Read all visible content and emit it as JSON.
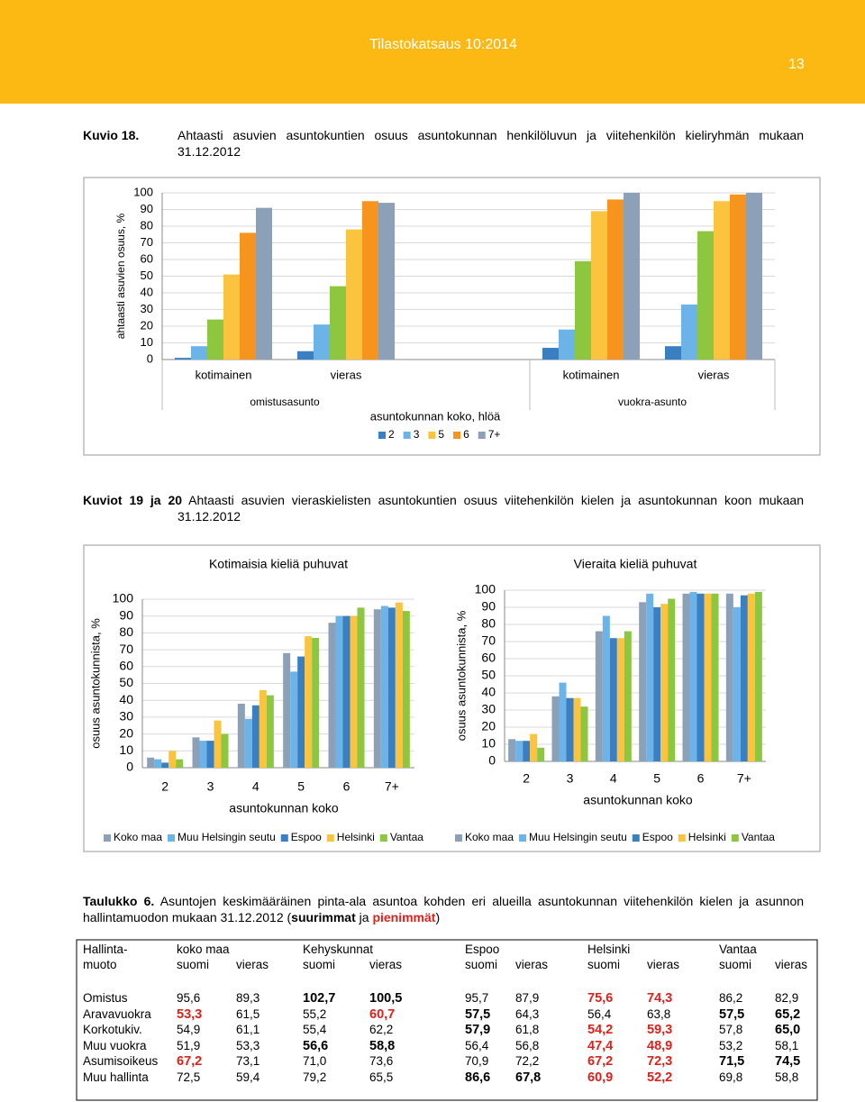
{
  "header": {
    "publication": "Tilastokatsaus 10:2014",
    "page_number": "13"
  },
  "figure_18": {
    "label": "Kuvio 18.",
    "caption": "Ahtaasti asuvien asuntokuntien osuus asuntokunnan henkilöluvun ja viitehenkilön kieliryhmän mukaan 31.12.2012",
    "chart_data": {
      "type": "bar",
      "y_label": "ahtaasti asuvien osuus, %",
      "x_label": "asuntokunnan koko, hlöä",
      "categories": [
        "kotimainen",
        "vieras",
        null,
        "kotimainen",
        "vieras"
      ],
      "group_labels": [
        "omistusasunto",
        "vuokra-asunto"
      ],
      "ylim": [
        0,
        100
      ],
      "yticks": [
        0,
        10,
        20,
        30,
        40,
        50,
        60,
        70,
        80,
        90,
        100
      ],
      "grid": true,
      "legend": "bottom",
      "series": [
        {
          "name": "2",
          "color": "#3a7fc1",
          "values": [
            1,
            5,
            null,
            7,
            8
          ]
        },
        {
          "name": "3",
          "color": "#6cb4e8",
          "values": [
            8,
            21,
            null,
            18,
            33
          ]
        },
        {
          "name": null,
          "color": "#8dc63f",
          "values": [
            24,
            44,
            null,
            59,
            77
          ]
        },
        {
          "name": "5",
          "color": "#fcc43e",
          "values": [
            51,
            78,
            null,
            89,
            95
          ]
        },
        {
          "name": "6",
          "color": "#f7941d",
          "values": [
            76,
            95,
            null,
            96,
            99
          ]
        },
        {
          "name": "7+",
          "color": "#8ca0b8",
          "values": [
            91,
            94,
            null,
            100,
            100
          ]
        }
      ]
    }
  },
  "figures_19_20": {
    "label": "Kuviot 19 ja 20",
    "caption": "Ahtaasti asuvien vieraskielisten asuntokuntien osuus viitehenkilön kielen ja asuntokunnan koon mukaan 31.12.2012",
    "chart_data": [
      {
        "type": "bar",
        "title": "Kotimaisia kieliä puhuvat",
        "y_label": "osuus asuntokunnista, %",
        "x_label": "asuntokunnan koko",
        "categories": [
          "2",
          "3",
          "4",
          "5",
          "6",
          "7+"
        ],
        "ylim": [
          0,
          100
        ],
        "yticks": [
          0,
          10,
          20,
          30,
          40,
          50,
          60,
          70,
          80,
          90,
          100
        ],
        "grid": true,
        "legend": "bottom",
        "series": [
          {
            "name": "Koko maa",
            "color": "#8ca0b8",
            "values": [
              6,
              18,
              38,
              68,
              86,
              94
            ]
          },
          {
            "name": "Muu Helsingin seutu",
            "color": "#6cb4e8",
            "values": [
              5,
              16,
              29,
              57,
              90,
              96
            ]
          },
          {
            "name": "Espoo",
            "color": "#3a7fc1",
            "values": [
              3,
              16,
              37,
              66,
              90,
              95
            ]
          },
          {
            "name": "Helsinki",
            "color": "#fcc43e",
            "values": [
              10,
              28,
              46,
              78,
              90,
              98
            ]
          },
          {
            "name": "Vantaa",
            "color": "#8dc63f",
            "values": [
              5,
              20,
              43,
              77,
              95,
              93
            ]
          }
        ]
      },
      {
        "type": "bar",
        "title": "Vieraita kieliä puhuvat",
        "y_label": "osuus asuntokunnista, %",
        "x_label": "asuntokunnan koko",
        "categories": [
          "2",
          "3",
          "4",
          "5",
          "6",
          "7+"
        ],
        "ylim": [
          0,
          100
        ],
        "yticks": [
          0,
          10,
          20,
          30,
          40,
          50,
          60,
          70,
          80,
          90,
          100
        ],
        "grid": true,
        "legend": "bottom",
        "series": [
          {
            "name": "Koko maa",
            "color": "#8ca0b8",
            "values": [
              13,
              38,
              76,
              93,
              98,
              98
            ]
          },
          {
            "name": "Muu Helsingin seutu",
            "color": "#6cb4e8",
            "values": [
              12,
              46,
              85,
              98,
              99,
              90
            ]
          },
          {
            "name": "Espoo",
            "color": "#3a7fc1",
            "values": [
              12,
              37,
              72,
              90,
              98,
              97
            ]
          },
          {
            "name": "Helsinki",
            "color": "#fcc43e",
            "values": [
              16,
              37,
              72,
              92,
              98,
              98
            ]
          },
          {
            "name": "Vantaa",
            "color": "#8dc63f",
            "values": [
              8,
              32,
              76,
              95,
              98,
              99
            ]
          }
        ]
      }
    ]
  },
  "table_6": {
    "label": "Taulukko 6.",
    "caption_parts": [
      "Asuntojen keskimääräinen pinta-ala asuntoa kohden eri alueilla asuntokunnan viitehenkilön kielen ja asunnon hallintamuodon mukaan 31.12.2012 (",
      "suurimmat",
      " ja ",
      "pienimmät",
      ")"
    ],
    "smallest_color": "#e0201b",
    "header_top": [
      "Hallinta-",
      "koko maa",
      "Kehyskunnat",
      "Espoo",
      "Helsinki",
      "Vantaa"
    ],
    "header_bottom": [
      "muoto",
      "suomi",
      "vieras",
      "suomi",
      "vieras",
      "suomi",
      "vieras",
      "suomi",
      "vieras",
      "suomi",
      "vieras"
    ],
    "rows": [
      [
        "Omistus",
        "95,6",
        "89,3",
        "102,7",
        "100,5",
        "95,7",
        "87,9",
        "75,6",
        "74,3",
        "86,2",
        "82,9"
      ],
      [
        "Aravavuokra",
        "53,3",
        "61,5",
        "55,2",
        "60,7",
        "57,5",
        "64,3",
        "56,4",
        "63,8",
        "57,5",
        "65,2"
      ],
      [
        "Korkotukiv.",
        "54,9",
        "61,1",
        "55,4",
        "62,2",
        "57,9",
        "61,8",
        "54,2",
        "59,3",
        "57,8",
        "65,0"
      ],
      [
        "Muu vuokra",
        "51,9",
        "53,3",
        "56,6",
        "58,8",
        "56,4",
        "56,8",
        "47,4",
        "48,9",
        "53,2",
        "58,1"
      ],
      [
        "Asumisoikeus",
        "67,2",
        "73,1",
        "71,0",
        "73,6",
        "70,9",
        "72,2",
        "67,2",
        "72,3",
        "71,5",
        "74,5"
      ],
      [
        "Muu hallinta",
        "72,5",
        "59,4",
        "79,2",
        "65,5",
        "86,6",
        "67,8",
        "60,9",
        "52,2",
        "69,8",
        "58,8"
      ]
    ],
    "largest": [
      [
        3,
        4
      ],
      [
        5,
        9,
        10
      ],
      [
        5,
        10
      ],
      [
        3,
        4
      ],
      [
        9,
        10
      ],
      [
        5,
        6
      ]
    ],
    "smallest": [
      [
        7,
        8
      ],
      [
        1,
        4
      ],
      [
        7,
        8
      ],
      [
        7,
        8
      ],
      [
        1,
        7,
        8
      ],
      [
        7,
        8
      ]
    ]
  }
}
